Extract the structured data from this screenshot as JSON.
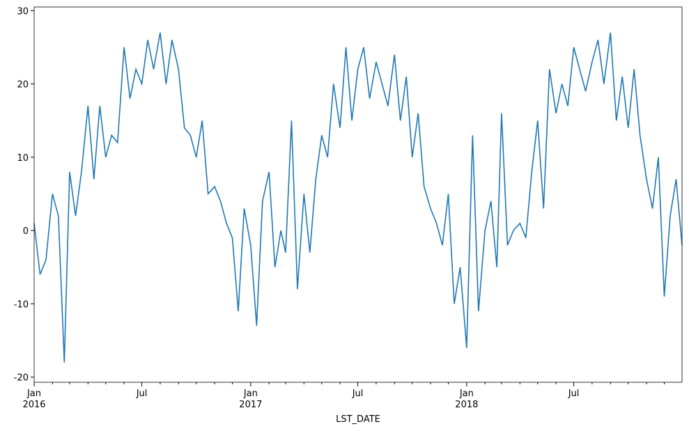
{
  "chart_data": {
    "type": "line",
    "xlabel": "LST_DATE",
    "x": [
      "2016-01-01",
      "2016-01-11",
      "2016-01-21",
      "2016-02-01",
      "2016-02-11",
      "2016-02-21",
      "2016-03-01",
      "2016-03-11",
      "2016-03-21",
      "2016-04-01",
      "2016-04-11",
      "2016-04-21",
      "2016-05-01",
      "2016-05-11",
      "2016-05-21",
      "2016-06-01",
      "2016-06-11",
      "2016-06-21",
      "2016-07-01",
      "2016-07-11",
      "2016-07-21",
      "2016-08-01",
      "2016-08-11",
      "2016-08-21",
      "2016-09-01",
      "2016-09-11",
      "2016-09-21",
      "2016-10-01",
      "2016-10-11",
      "2016-10-21",
      "2016-11-01",
      "2016-11-11",
      "2016-11-21",
      "2016-12-01",
      "2016-12-11",
      "2016-12-21",
      "2017-01-01",
      "2017-01-11",
      "2017-01-21",
      "2017-02-01",
      "2017-02-11",
      "2017-02-21",
      "2017-03-01",
      "2017-03-11",
      "2017-03-21",
      "2017-04-01",
      "2017-04-11",
      "2017-04-21",
      "2017-05-01",
      "2017-05-11",
      "2017-05-21",
      "2017-06-01",
      "2017-06-11",
      "2017-06-21",
      "2017-07-01",
      "2017-07-11",
      "2017-07-21",
      "2017-08-01",
      "2017-08-11",
      "2017-08-21",
      "2017-09-01",
      "2017-09-11",
      "2017-09-21",
      "2017-10-01",
      "2017-10-11",
      "2017-10-21",
      "2017-11-01",
      "2017-11-11",
      "2017-11-21",
      "2017-12-01",
      "2017-12-11",
      "2017-12-21",
      "2018-01-01",
      "2018-01-11",
      "2018-01-21",
      "2018-02-01",
      "2018-02-11",
      "2018-02-21",
      "2018-03-01",
      "2018-03-11",
      "2018-03-21",
      "2018-04-01",
      "2018-04-11",
      "2018-04-21",
      "2018-05-01",
      "2018-05-11",
      "2018-05-21",
      "2018-06-01",
      "2018-06-11",
      "2018-06-21",
      "2018-07-01",
      "2018-07-11",
      "2018-07-21",
      "2018-08-01",
      "2018-08-11",
      "2018-08-21",
      "2018-09-01",
      "2018-09-11",
      "2018-09-21",
      "2018-10-01",
      "2018-10-11",
      "2018-10-21",
      "2018-11-01",
      "2018-11-11",
      "2018-11-21",
      "2018-12-01",
      "2018-12-11",
      "2018-12-21",
      "2018-12-31"
    ],
    "series": [
      {
        "color": "#1f77b4",
        "values": [
          1,
          -6,
          -4,
          5,
          2,
          -18,
          8,
          2,
          8,
          17,
          7,
          17,
          10,
          13,
          12,
          25,
          18,
          22,
          20,
          26,
          22,
          27,
          20,
          26,
          22,
          14,
          13,
          10,
          15,
          5,
          6,
          4,
          1,
          -1,
          -11,
          3,
          -2,
          -13,
          4,
          8,
          -5,
          0,
          -3,
          15,
          -8,
          5,
          -3,
          7,
          13,
          10,
          20,
          14,
          25,
          15,
          22,
          25,
          18,
          23,
          20,
          17,
          24,
          15,
          21,
          10,
          16,
          6,
          3,
          1,
          -2,
          5,
          -10,
          -5,
          -16,
          13,
          -11,
          0,
          4,
          -5,
          16,
          -2,
          0,
          1,
          -1,
          8,
          15,
          3,
          22,
          16,
          20,
          17,
          25,
          22,
          19,
          23,
          26,
          20,
          27,
          15,
          21,
          14,
          22,
          13,
          7,
          3,
          10,
          -9,
          2,
          7,
          -2
        ]
      }
    ],
    "xlim": [
      "2016-01-01",
      "2018-12-31"
    ],
    "xticks": [
      {
        "value": "2016-01-01",
        "label": "Jan\n2016"
      },
      {
        "value": "2016-07-01",
        "label": "Jul"
      },
      {
        "value": "2017-01-01",
        "label": "Jan\n2017"
      },
      {
        "value": "2017-07-01",
        "label": "Jul"
      },
      {
        "value": "2018-01-01",
        "label": "Jan\n2018"
      },
      {
        "value": "2018-07-01",
        "label": "Jul"
      }
    ],
    "xminorticks": [
      "2016-02-01",
      "2016-03-01",
      "2016-04-01",
      "2016-05-01",
      "2016-06-01",
      "2016-08-01",
      "2016-09-01",
      "2016-10-01",
      "2016-11-01",
      "2016-12-01",
      "2017-02-01",
      "2017-03-01",
      "2017-04-01",
      "2017-05-01",
      "2017-06-01",
      "2017-08-01",
      "2017-09-01",
      "2017-10-01",
      "2017-11-01",
      "2017-12-01",
      "2018-02-01",
      "2018-03-01",
      "2018-04-01",
      "2018-05-01",
      "2018-06-01",
      "2018-08-01",
      "2018-09-01",
      "2018-10-01",
      "2018-11-01",
      "2018-12-01"
    ],
    "ylim": [
      -20.7,
      30.5
    ],
    "yticks": [
      -20,
      -10,
      0,
      10,
      20,
      30
    ]
  }
}
